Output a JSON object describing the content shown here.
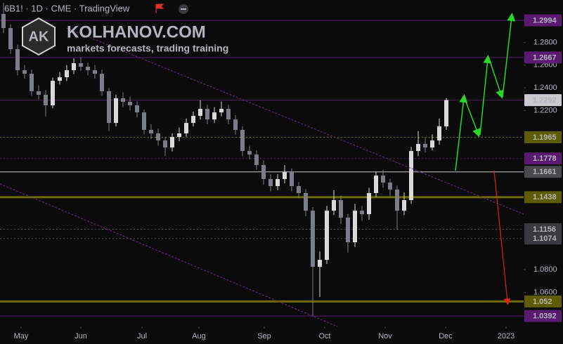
{
  "chart_data": {
    "type": "candlestick",
    "symbol_info": "6B1! · 1D · CME · TradingView",
    "watermark": {
      "logo": "AK",
      "name": "KOLHANOV.COM",
      "tagline": "markets forecasts, trading training"
    },
    "up_color": "#d9d9d9",
    "down_color": "#7b7e88",
    "grid": false,
    "xlim": [
      -0.5,
      74
    ],
    "xticks": [
      {
        "value": 2.5,
        "label": "May"
      },
      {
        "value": 11,
        "label": "Jun"
      },
      {
        "value": 19.7,
        "label": "Jul"
      },
      {
        "value": 27.8,
        "label": "Aug"
      },
      {
        "value": 37.1,
        "label": "Sep"
      },
      {
        "value": 45.7,
        "label": "Oct"
      },
      {
        "value": 54.3,
        "label": "Nov"
      },
      {
        "value": 62.9,
        "label": "Dec"
      },
      {
        "value": 71.5,
        "label": "2023"
      }
    ],
    "ylim": [
      1.03,
      1.3173
    ],
    "yticks": [
      {
        "value": 1.28,
        "label": "1.2800"
      },
      {
        "value": 1.26,
        "label": "1.2600"
      },
      {
        "value": 1.24,
        "label": "1.2400"
      },
      {
        "value": 1.22,
        "label": "1.2200"
      },
      {
        "value": 1.08,
        "label": "1.0800"
      },
      {
        "value": 1.06,
        "label": "1.0600"
      }
    ],
    "levels": [
      {
        "value": 1.2994,
        "color": "#5a1a70",
        "text_color": "#ffffff",
        "line": "#5a1a70",
        "width": 1,
        "dash": ""
      },
      {
        "value": 1.2667,
        "color": "#5a1a70",
        "text_color": "#ffffff",
        "line": "#5a1a70",
        "width": 1,
        "dash": ""
      },
      {
        "value": 1.2292,
        "color": "#c9c9cf",
        "text_color": "#111111",
        "line": "#4e1d5e",
        "width": 1,
        "dash": ""
      },
      {
        "value": 1.1965,
        "color": "#5e5c00",
        "text_color": "#ffffff",
        "line": "#7a7800",
        "width": 1,
        "dash": "2 3"
      },
      {
        "value": 1.1778,
        "color": "#5a1a70",
        "text_color": "#ffffff",
        "line": "#4e1d5e",
        "width": 1,
        "dash": "2 3"
      },
      {
        "value": 1.1661,
        "color": "#4a4a4e",
        "text_color": "#ffffff",
        "line": "#8a8a8e",
        "width": 1.5,
        "dash": ""
      },
      {
        "value": 1.1438,
        "color": "#5e5c00",
        "text_color": "#ffffff",
        "line": "#6e6c00",
        "width": 3,
        "dash": ""
      },
      {
        "value": 1.1156,
        "color": "#3a3a3e",
        "text_color": "#ffffff",
        "line": "#505055",
        "width": 1,
        "dash": "2 3"
      },
      {
        "value": 1.1074,
        "color": "#3a3a3e",
        "text_color": "#ffffff",
        "line": "#505055",
        "width": 1,
        "dash": "2 3"
      },
      {
        "value": 1.052,
        "color": "#5e5c00",
        "text_color": "#ffffff",
        "line": "#6e6c00",
        "width": 3,
        "dash": ""
      },
      {
        "value": 1.0392,
        "color": "#5a1a70",
        "text_color": "#ffffff",
        "line": "#5a1a70",
        "width": 1,
        "dash": ""
      }
    ],
    "open": [
      1.305,
      1.2926,
      1.274,
      1.2555,
      1.2524,
      1.237,
      1.2339,
      1.2246,
      1.2462,
      1.2493,
      1.2555,
      1.2617,
      1.2586,
      1.2555,
      1.2524,
      1.237,
      1.2091,
      1.2308,
      1.2277,
      1.2246,
      1.2184,
      1.203,
      1.1999,
      1.1937,
      1.1875,
      1.1968,
      1.1999,
      1.2091,
      1.2153,
      1.2215,
      1.2122,
      1.2184,
      1.2215,
      1.2122,
      1.203,
      1.1844,
      1.1813,
      1.1721,
      1.1597,
      1.1535,
      1.1597,
      1.1659,
      1.1535,
      1.1474,
      1.1319,
      1.0825,
      1.0886,
      1.1319,
      1.1412,
      1.1257,
      1.1041,
      1.1319,
      1.1288,
      1.1474,
      1.1628,
      1.1566,
      1.1505,
      1.1319,
      1.1412,
      1.1844,
      1.1906,
      1.1875,
      1.1937,
      1.2061
    ],
    "high": [
      1.315,
      1.296,
      1.278,
      1.26,
      1.256,
      1.242,
      1.238,
      1.249,
      1.254,
      1.26,
      1.266,
      1.267,
      1.262,
      1.26,
      1.256,
      1.24,
      1.234,
      1.236,
      1.232,
      1.228,
      1.221,
      1.208,
      1.204,
      1.197,
      1.2,
      1.205,
      1.213,
      1.219,
      1.229,
      1.225,
      1.223,
      1.228,
      1.225,
      1.216,
      1.206,
      1.189,
      1.185,
      1.176,
      1.164,
      1.164,
      1.172,
      1.169,
      1.157,
      1.151,
      1.135,
      1.096,
      1.136,
      1.15,
      1.145,
      1.129,
      1.138,
      1.136,
      1.152,
      1.166,
      1.168,
      1.16,
      1.154,
      1.148,
      1.188,
      1.202,
      1.196,
      1.199,
      1.213,
      1.231
    ],
    "low": [
      1.288,
      1.27,
      1.251,
      1.248,
      1.233,
      1.23,
      1.215,
      1.222,
      1.243,
      1.246,
      1.252,
      1.255,
      1.251,
      1.248,
      1.233,
      1.202,
      1.206,
      1.223,
      1.22,
      1.214,
      1.199,
      1.195,
      1.189,
      1.18,
      1.184,
      1.193,
      1.197,
      1.206,
      1.212,
      1.208,
      1.209,
      1.215,
      1.208,
      1.199,
      1.18,
      1.177,
      1.168,
      1.155,
      1.149,
      1.15,
      1.156,
      1.149,
      1.143,
      1.127,
      1.0392,
      1.056,
      1.085,
      1.128,
      1.12,
      1.095,
      1.1,
      1.123,
      1.124,
      1.144,
      1.152,
      1.144,
      1.115,
      1.128,
      1.138,
      1.18,
      1.183,
      1.185,
      1.19,
      1.203
    ],
    "close": [
      1.2926,
      1.274,
      1.2555,
      1.2524,
      1.237,
      1.2339,
      1.2246,
      1.2462,
      1.2493,
      1.2555,
      1.2617,
      1.2586,
      1.2555,
      1.2524,
      1.237,
      1.2091,
      1.2308,
      1.2277,
      1.2246,
      1.2184,
      1.203,
      1.1999,
      1.1937,
      1.1875,
      1.1968,
      1.1999,
      1.2091,
      1.2153,
      1.2215,
      1.2122,
      1.2184,
      1.2215,
      1.2122,
      1.203,
      1.1844,
      1.1813,
      1.1721,
      1.1597,
      1.1535,
      1.1597,
      1.1659,
      1.1535,
      1.1474,
      1.1319,
      1.0825,
      1.0886,
      1.1319,
      1.1412,
      1.1257,
      1.1041,
      1.1319,
      1.1288,
      1.1474,
      1.1628,
      1.1566,
      1.1505,
      1.1319,
      1.1412,
      1.1844,
      1.1906,
      1.1875,
      1.1937,
      1.2061,
      1.2292
    ]
  }
}
